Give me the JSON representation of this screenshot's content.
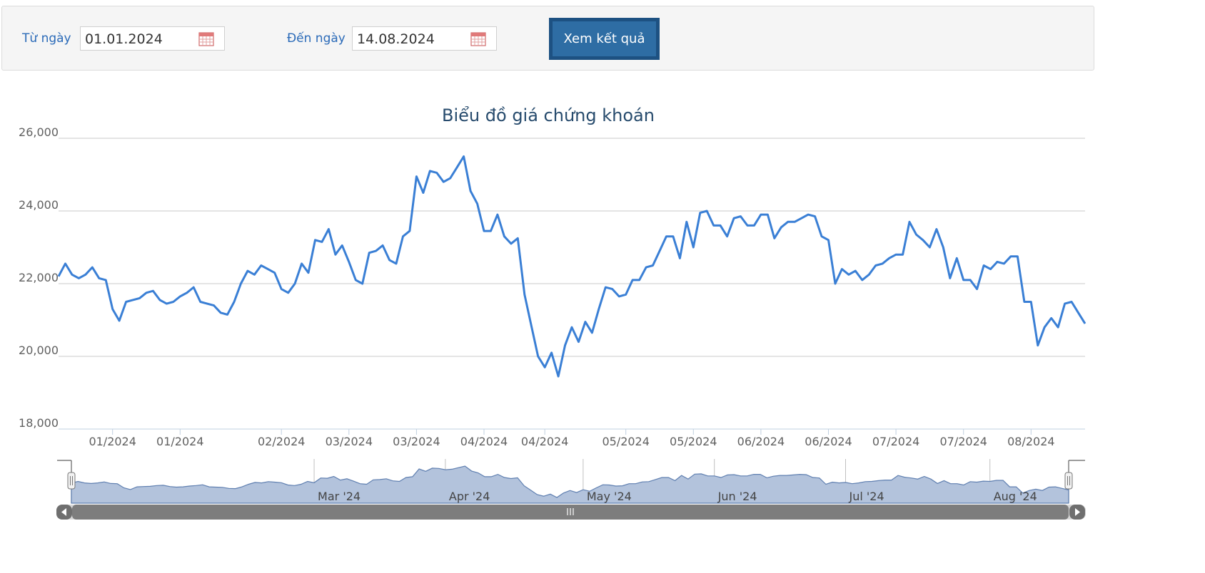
{
  "filters": {
    "from_label": "Từ ngày",
    "from_value": "01.01.2024",
    "to_label": "Đến ngày",
    "to_value": "14.08.2024",
    "submit_label": "Xem kết quả"
  },
  "colors": {
    "line": "#3a7fd5",
    "navigator_fill": "#b3c3dc",
    "button": "#2e6da4"
  },
  "chart_data": {
    "type": "line",
    "title": "Biểu đồ giá chứng khoán",
    "ylim": [
      18000,
      26000
    ],
    "yticks": [
      26000,
      24000,
      22000,
      20000,
      18000
    ],
    "ytick_labels": [
      "26,000",
      "24,000",
      "22,000",
      "20,000",
      "18,000"
    ],
    "grid": true,
    "xticks": [
      {
        "label": "01/2024",
        "index": 8
      },
      {
        "label": "01/2024",
        "index": 18
      },
      {
        "label": "02/2024",
        "index": 33
      },
      {
        "label": "03/2024",
        "index": 43
      },
      {
        "label": "03/2024",
        "index": 53
      },
      {
        "label": "04/2024",
        "index": 63
      },
      {
        "label": "04/2024",
        "index": 72
      },
      {
        "label": "05/2024",
        "index": 84
      },
      {
        "label": "05/2024",
        "index": 94
      },
      {
        "label": "06/2024",
        "index": 104
      },
      {
        "label": "06/2024",
        "index": 114
      },
      {
        "label": "07/2024",
        "index": 124
      },
      {
        "label": "07/2024",
        "index": 134
      },
      {
        "label": "08/2024",
        "index": 144
      }
    ],
    "series": [
      {
        "values": [
          22200,
          22550,
          22250,
          22150,
          22250,
          22450,
          22150,
          22100,
          21300,
          20980,
          21500,
          21550,
          21600,
          21750,
          21800,
          21550,
          21450,
          21500,
          21650,
          21750,
          21900,
          21500,
          21450,
          21400,
          21200,
          21150,
          21500,
          22000,
          22350,
          22250,
          22500,
          22400,
          22300,
          21850,
          21750,
          22000,
          22550,
          22300,
          23200,
          23150,
          23500,
          22800,
          23050,
          22600,
          22100,
          22000,
          22850,
          22900,
          23050,
          22650,
          22550,
          23300,
          23450,
          24950,
          24500,
          25100,
          25050,
          24800,
          24900,
          25200,
          25500,
          24550,
          24200,
          23450,
          23450,
          23900,
          23300,
          23100,
          23250,
          21700,
          20850,
          20000,
          19700,
          20100,
          19450,
          20300,
          20800,
          20400,
          20950,
          20650,
          21300,
          21900,
          21850,
          21650,
          21700,
          22100,
          22100,
          22450,
          22500,
          22900,
          23300,
          23300,
          22700,
          23700,
          23000,
          23950,
          24000,
          23600,
          23600,
          23300,
          23800,
          23850,
          23600,
          23600,
          23900,
          23900,
          23250,
          23550,
          23700,
          23700,
          23800,
          23900,
          23850,
          23300,
          23200,
          22000,
          22400,
          22250,
          22350,
          22100,
          22250,
          22500,
          22550,
          22700,
          22800,
          22800,
          23700,
          23350,
          23200,
          23000,
          23500,
          23000,
          22150,
          22700,
          22100,
          22100,
          21850,
          22500,
          22400,
          22600,
          22550,
          22750,
          22750,
          21500,
          21500,
          20300,
          20800,
          21050,
          20800,
          21450,
          21500,
          21200,
          20900
        ]
      }
    ],
    "navigator": {
      "labels": [
        "Mar '24",
        "Apr '24",
        "May '24",
        "Jun '24",
        "Jul '24",
        "Aug '24"
      ],
      "label_indices": [
        37,
        57,
        78,
        98,
        118,
        140
      ]
    }
  }
}
